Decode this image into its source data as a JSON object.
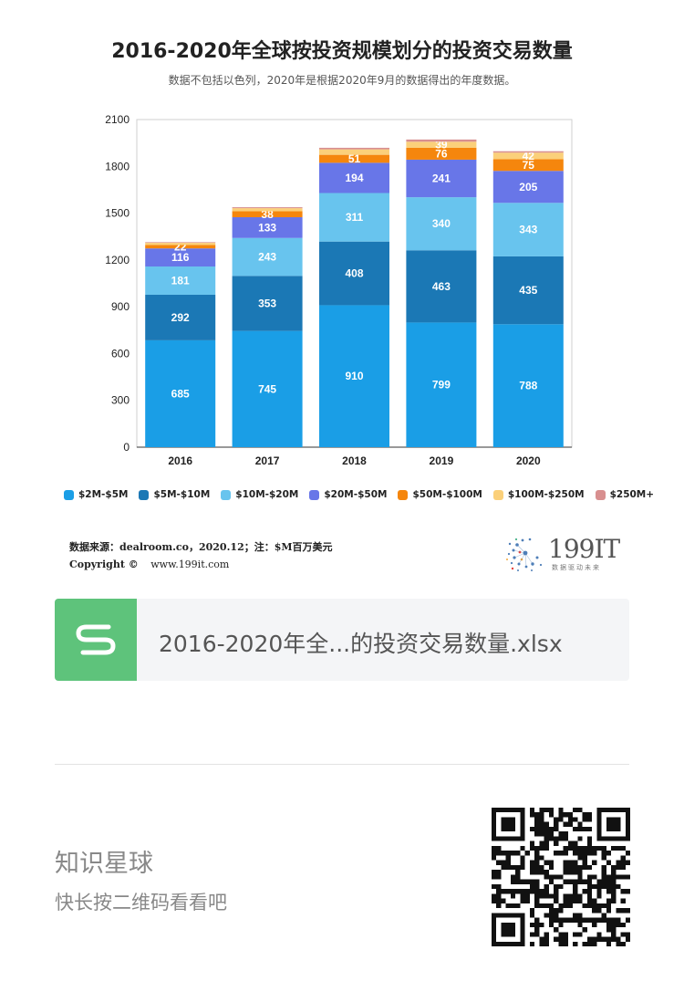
{
  "chart_card": {
    "title": "2016-2020年全球按投资规模划分的投资交易数量",
    "subtitle": "数据不包括以色列，2020年是根据2020年9月的数据得出的年度数据。",
    "source_text": "数据来源：dealroom.co，2020.12；注：$M百万美元",
    "copyright_label": "Copyright ©",
    "copyright_site": "www.199it.com",
    "brand_name": "199IT",
    "brand_slogan": "数据驱动未来"
  },
  "chart_data": {
    "type": "bar",
    "stacked": true,
    "title": "2016-2020年全球按投资规模划分的投资交易数量",
    "subtitle": "数据不包括以色列，2020年是根据2020年9月的数据得出的年度数据。",
    "xlabel": "",
    "ylabel": "",
    "categories": [
      "2016",
      "2017",
      "2018",
      "2019",
      "2020"
    ],
    "y_ticks": [
      0,
      300,
      600,
      900,
      1200,
      1500,
      1800,
      2100
    ],
    "ylim": [
      0,
      2100
    ],
    "grid": false,
    "legend_position": "bottom",
    "series": [
      {
        "name": "$2M-$5M",
        "color": "#1a9ee6",
        "values": [
          685,
          745,
          910,
          799,
          788
        ],
        "labels": [
          "685",
          "745",
          "910",
          "799",
          "788"
        ]
      },
      {
        "name": "$5M-$10M",
        "color": "#1b78b5",
        "values": [
          292,
          353,
          408,
          463,
          435
        ],
        "labels": [
          "292",
          "353",
          "408",
          "463",
          "435"
        ]
      },
      {
        "name": "$10M-$20M",
        "color": "#68c4ee",
        "values": [
          181,
          243,
          311,
          340,
          343
        ],
        "labels": [
          "181",
          "243",
          "311",
          "340",
          "343"
        ]
      },
      {
        "name": "$20M-$50M",
        "color": "#6876e8",
        "values": [
          116,
          133,
          194,
          241,
          205
        ],
        "labels": [
          "116",
          "133",
          "194",
          "241",
          "205"
        ]
      },
      {
        "name": "$50M-$100M",
        "color": "#f5860d",
        "values": [
          22,
          38,
          51,
          76,
          75
        ],
        "labels": [
          "22",
          "38",
          "51",
          "76",
          "75"
        ]
      },
      {
        "name": "$100M-$250M",
        "color": "#fbd07a",
        "values": [
          14,
          20,
          35,
          39,
          42
        ],
        "labels": [
          "",
          "",
          "",
          "39",
          "42"
        ]
      },
      {
        "name": "$250M+",
        "color": "#d88f8f",
        "values": [
          4,
          6,
          10,
          14,
          9
        ],
        "labels": [
          "",
          "",
          "",
          "",
          ""
        ]
      }
    ]
  },
  "file_card": {
    "icon": "s-icon",
    "file_name": "2016-2020年全...的投资交易数量.xlsx"
  },
  "planet": {
    "title": "知识星球",
    "hint": "快长按二维码看看吧"
  }
}
